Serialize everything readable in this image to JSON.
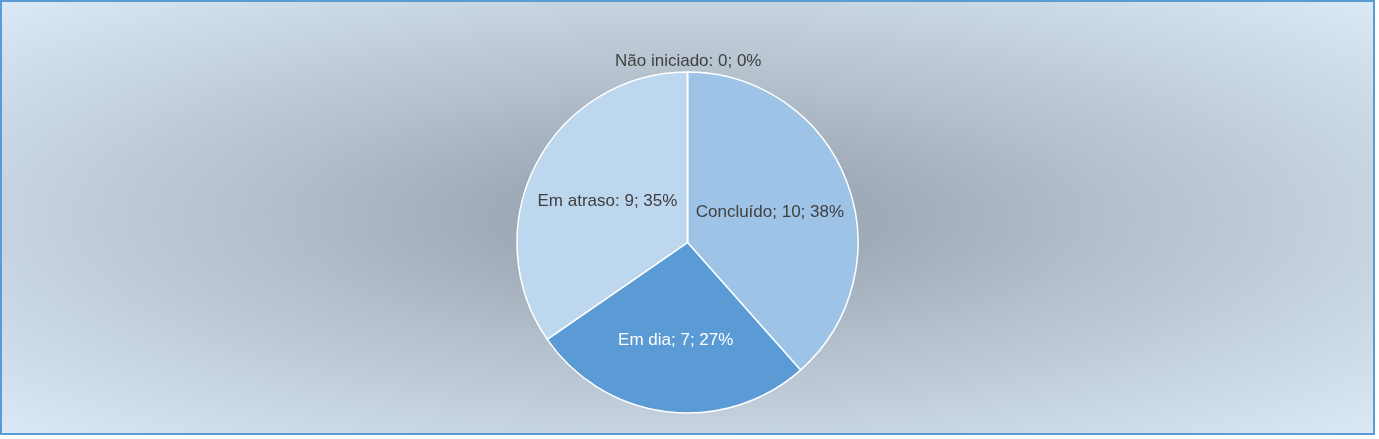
{
  "chart_data": {
    "type": "pie",
    "categories": [
      "Concluído",
      "Em dia",
      "Em atraso",
      "Não iniciado"
    ],
    "values": [
      10,
      7,
      9,
      0
    ],
    "colors": [
      "#9dc3e6",
      "#5b9bd5",
      "#bdd7ee",
      "#a5a5a5"
    ],
    "value_labels": [
      "; 10; 38%",
      "; 7; 27%",
      ": 9; 35%",
      ": 0; 0%"
    ]
  }
}
